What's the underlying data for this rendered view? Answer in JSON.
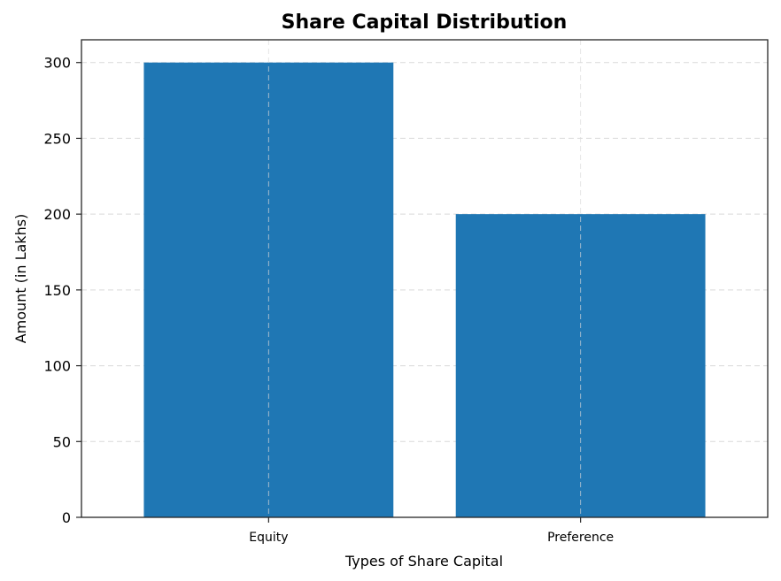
{
  "chart_data": {
    "type": "bar",
    "title": "Share Capital Distribution",
    "xlabel": "Types of Share Capital",
    "ylabel": "Amount (in Lakhs)",
    "categories": [
      "Equity",
      "Preference"
    ],
    "values": [
      300,
      200
    ],
    "ylim": [
      0,
      315
    ],
    "yticks": [
      0,
      50,
      100,
      150,
      200,
      250,
      300
    ],
    "grid": true,
    "bar_color": "#1f77b4",
    "grid_color": "#d9d9d9",
    "legend": "none"
  }
}
